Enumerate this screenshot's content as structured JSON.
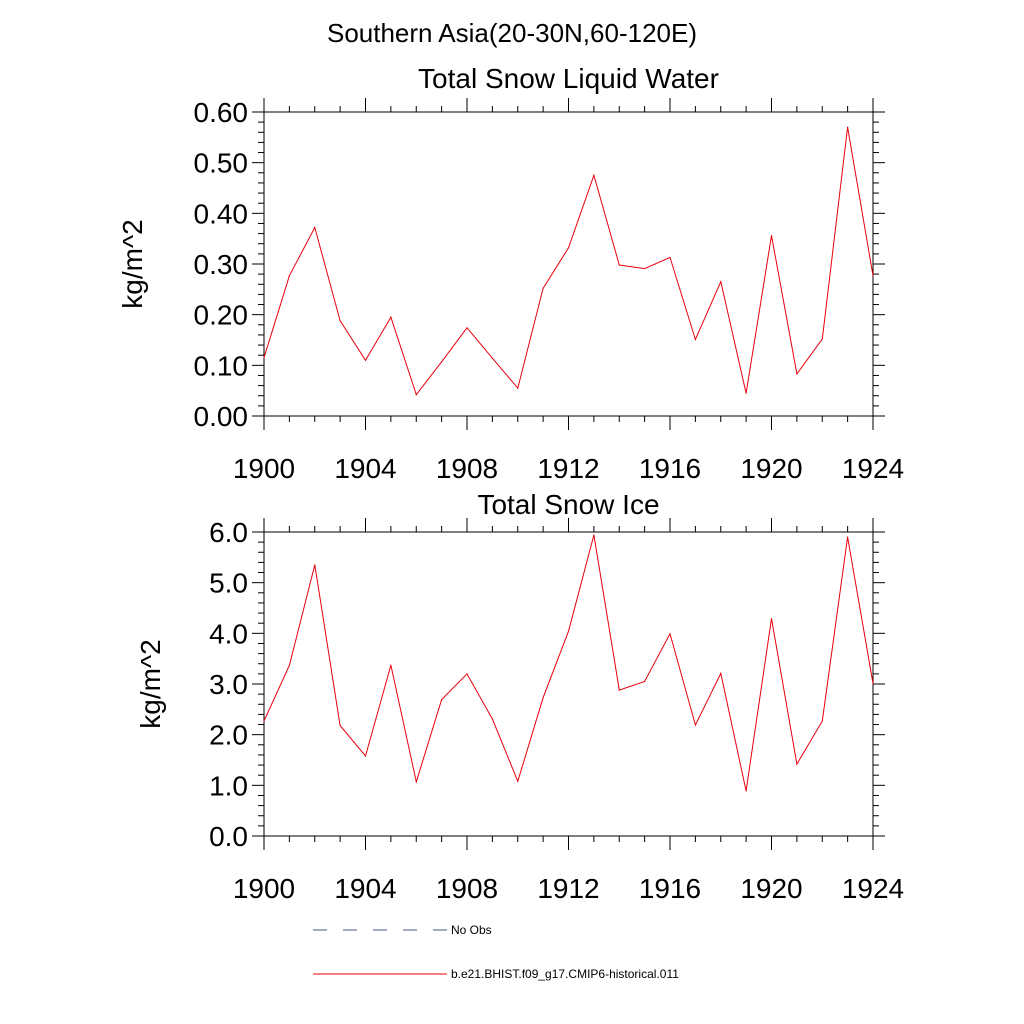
{
  "figure": {
    "title": "Southern Asia(20-30N,60-120E)"
  },
  "chart_data": [
    {
      "type": "line",
      "title": "Total Snow Liquid Water",
      "xlabel": "",
      "ylabel": "kg/m^2",
      "xlim": [
        1900,
        1924
      ],
      "ylim": [
        0.0,
        0.6
      ],
      "x_ticks": [
        "1900",
        "1904",
        "1908",
        "1912",
        "1916",
        "1920",
        "1924"
      ],
      "y_ticks": [
        "0.00",
        "0.10",
        "0.20",
        "0.30",
        "0.40",
        "0.50",
        "0.60"
      ],
      "grid": false,
      "x": [
        1900,
        1901,
        1902,
        1903,
        1904,
        1905,
        1906,
        1907,
        1908,
        1909,
        1910,
        1911,
        1912,
        1913,
        1914,
        1915,
        1916,
        1917,
        1918,
        1919,
        1920,
        1921,
        1922,
        1923,
        1924
      ],
      "series": [
        {
          "name": "b.e21.BHIST.f09_g17.CMIP6-historical.011",
          "color": "#e8000b",
          "values": [
            0.115,
            0.277,
            0.372,
            0.188,
            0.11,
            0.195,
            0.042,
            0.107,
            0.174,
            0.114,
            0.055,
            0.252,
            0.332,
            0.475,
            0.298,
            0.291,
            0.313,
            0.151,
            0.265,
            0.045,
            0.356,
            0.083,
            0.152,
            0.57,
            0.277
          ]
        }
      ]
    },
    {
      "type": "line",
      "title": "Total Snow Ice",
      "xlabel": "",
      "ylabel": "kg/m^2",
      "xlim": [
        1900,
        1924
      ],
      "ylim": [
        0.0,
        6.0
      ],
      "x_ticks": [
        "1900",
        "1904",
        "1908",
        "1912",
        "1916",
        "1920",
        "1924"
      ],
      "y_ticks": [
        "0.0",
        "1.0",
        "2.0",
        "3.0",
        "4.0",
        "5.0",
        "6.0"
      ],
      "grid": false,
      "x": [
        1900,
        1901,
        1902,
        1903,
        1904,
        1905,
        1906,
        1907,
        1908,
        1909,
        1910,
        1911,
        1912,
        1913,
        1914,
        1915,
        1916,
        1917,
        1918,
        1919,
        1920,
        1921,
        1922,
        1923,
        1924
      ],
      "series": [
        {
          "name": "b.e21.BHIST.f09_g17.CMIP6-historical.011",
          "color": "#e8000b",
          "values": [
            2.27,
            3.37,
            5.35,
            2.18,
            1.58,
            3.37,
            1.07,
            2.69,
            3.2,
            2.31,
            1.08,
            2.73,
            4.04,
            5.94,
            2.88,
            3.05,
            3.99,
            2.19,
            3.21,
            0.89,
            4.29,
            1.42,
            2.27,
            5.9,
            3.01
          ]
        }
      ]
    }
  ],
  "legend": {
    "placement": "bottom",
    "items": [
      {
        "label": "No Obs",
        "color": "#4a5a8a",
        "style": "dashed"
      },
      {
        "label": "b.e21.BHIST.f09_g17.CMIP6-historical.011",
        "color": "#e8000b",
        "style": "solid"
      }
    ]
  }
}
